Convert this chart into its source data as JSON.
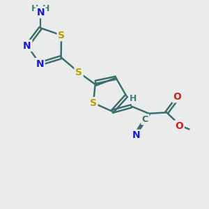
{
  "bg_color": "#eaecec",
  "atom_colors": {
    "C": "#3d6e6e",
    "N": "#1a1ad4",
    "S": "#b8a000",
    "O": "#d42020",
    "H": "#408080"
  },
  "bond_color": "#3d6e6e",
  "bond_width": 1.8,
  "figsize": [
    3.0,
    3.0
  ],
  "dpi": 100
}
